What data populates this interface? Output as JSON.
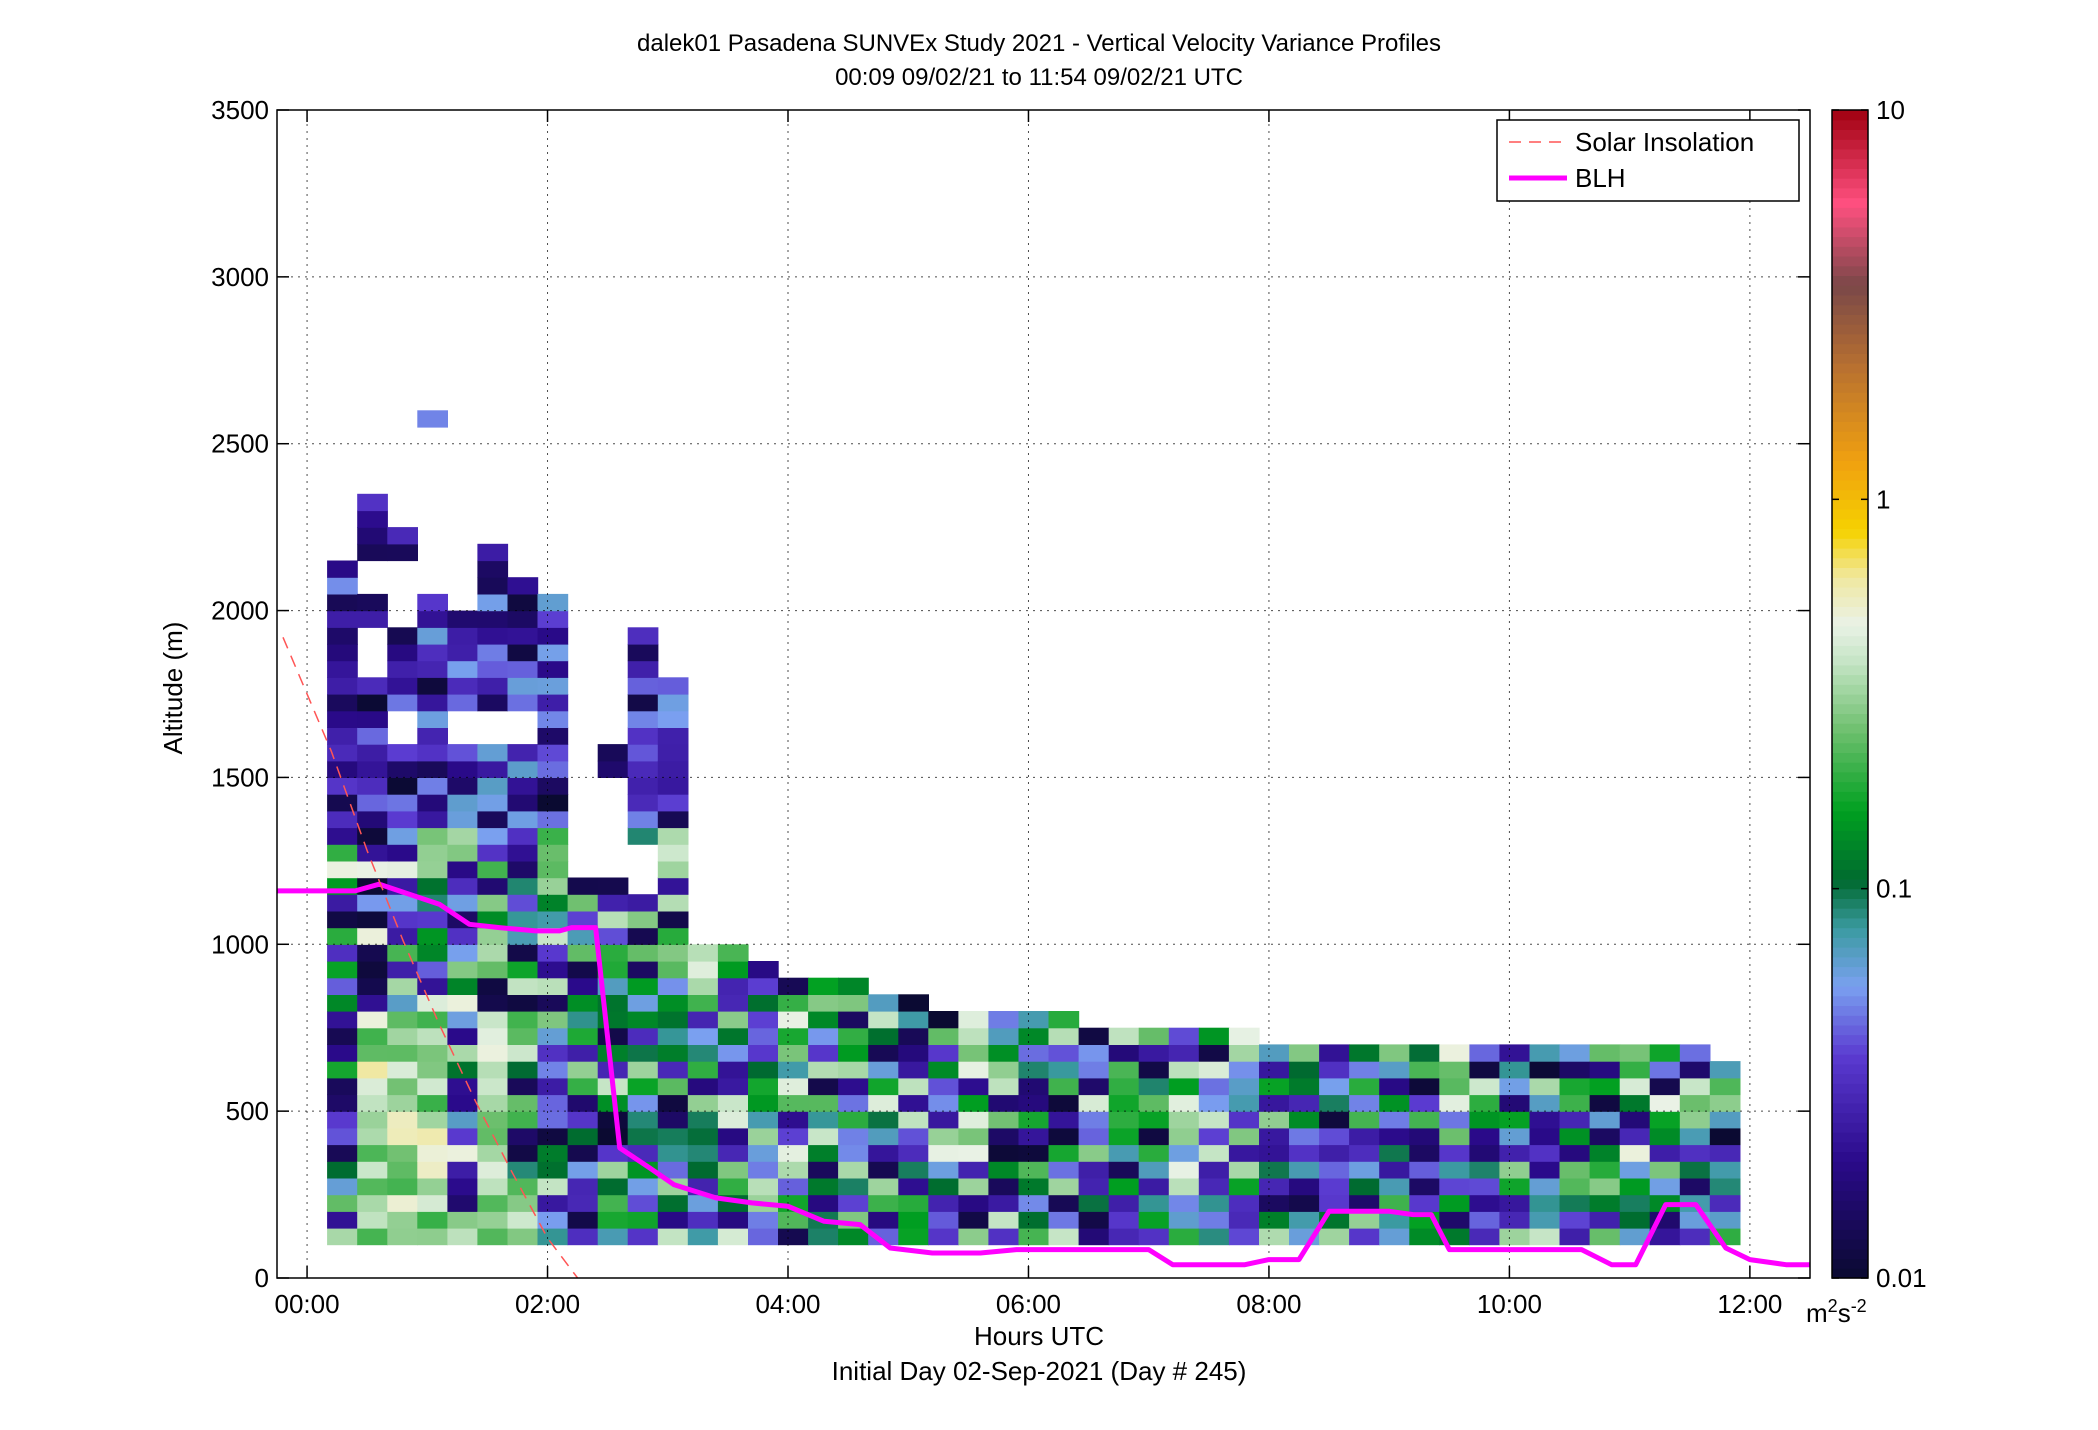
{
  "chart_data": {
    "type": "heatmap",
    "title": "dalek01 Pasadena SUNVEx Study 2021 - Vertical Velocity Variance Profiles",
    "subtitle": "00:09 09/02/21 to 11:54 09/02/21  UTC",
    "xlabel": "Hours UTC",
    "xlabel2": "Initial Day 02-Sep-2021 (Day # 245)",
    "ylabel": "Altitude (m)",
    "xlim": [
      -0.25,
      12.5
    ],
    "ylim": [
      0,
      3500
    ],
    "x_ticks": [
      0,
      2,
      4,
      6,
      8,
      10,
      12
    ],
    "x_tick_labels": [
      "00:00",
      "02:00",
      "04:00",
      "06:00",
      "08:00",
      "10:00",
      "12:00"
    ],
    "y_ticks": [
      0,
      500,
      1000,
      1500,
      2000,
      2500,
      3000,
      3500
    ],
    "y_tick_labels": [
      "0",
      "500",
      "1000",
      "1500",
      "2000",
      "2500",
      "3000",
      "3500"
    ],
    "grid": true,
    "colorbar": {
      "scale": "log",
      "range": [
        0.01,
        10
      ],
      "ticks": [
        0.01,
        0.1,
        1,
        10
      ],
      "tick_labels": [
        "0.01",
        "0.1",
        "1",
        "10"
      ],
      "unit_base": "m",
      "unit_sup1": "2",
      "unit_mid": "s",
      "unit_sup2": "-2",
      "colormap": [
        {
          "v": 0.0,
          "color": "#0a0a30"
        },
        {
          "v": 0.1,
          "color": "#2a0a8a"
        },
        {
          "v": 0.19,
          "color": "#5a3ad0"
        },
        {
          "v": 0.25,
          "color": "#7aa0f0"
        },
        {
          "v": 0.3,
          "color": "#3a9aa0"
        },
        {
          "v": 0.34,
          "color": "#006a30"
        },
        {
          "v": 0.4,
          "color": "#00a020"
        },
        {
          "v": 0.47,
          "color": "#70c070"
        },
        {
          "v": 0.53,
          "color": "#c8e6c8"
        },
        {
          "v": 0.56,
          "color": "#eaf2e6"
        },
        {
          "v": 0.6,
          "color": "#f0e8a0"
        },
        {
          "v": 0.64,
          "color": "#f5d200"
        },
        {
          "v": 0.7,
          "color": "#f0a010"
        },
        {
          "v": 0.78,
          "color": "#b87030"
        },
        {
          "v": 0.85,
          "color": "#7a4848"
        },
        {
          "v": 0.92,
          "color": "#ff5080"
        },
        {
          "v": 1.0,
          "color": "#a00010"
        }
      ]
    },
    "legend": {
      "placement": "top-right",
      "entries": [
        {
          "label": "Solar Insolation",
          "color": "#ff5555",
          "style": "dashed"
        },
        {
          "label": "BLH",
          "color": "#ff00ff",
          "style": "solid"
        }
      ]
    },
    "heatmap": {
      "x_start": 0.167,
      "dx": 0.25,
      "y_start": 100,
      "dy": 50,
      "ncols": 47,
      "top_altitudes": [
        2150,
        2350,
        2250,
        2600,
        2200,
        2200,
        2100,
        2050,
        1950,
        1950,
        1950,
        1800,
        1000,
        1000,
        950,
        900,
        900,
        900,
        850,
        850,
        800,
        800,
        800,
        800,
        800,
        750,
        750,
        750,
        750,
        750,
        750,
        700,
        700,
        700,
        700,
        700,
        700,
        700,
        700,
        700,
        700,
        700,
        700,
        700,
        700,
        700,
        650
      ],
      "gaps": [
        {
          "col": 1,
          "from": 1800,
          "to": 1950
        },
        {
          "col": 1,
          "from": 2050,
          "to": 2150
        },
        {
          "col": 2,
          "from": 1600,
          "to": 1700
        },
        {
          "col": 2,
          "from": 1950,
          "to": 2150
        },
        {
          "col": 3,
          "from": 2050,
          "to": 2550
        },
        {
          "col": 4,
          "from": 1600,
          "to": 1700
        },
        {
          "col": 4,
          "from": 2000,
          "to": 2200
        },
        {
          "col": 5,
          "from": 1600,
          "to": 1700
        },
        {
          "col": 6,
          "from": 1600,
          "to": 1700
        },
        {
          "col": 8,
          "from": 1200,
          "to": 1950
        },
        {
          "col": 9,
          "from": 1200,
          "to": 1500
        },
        {
          "col": 9,
          "from": 1600,
          "to": 1950
        },
        {
          "col": 10,
          "from": 1150,
          "to": 1300
        }
      ],
      "low_layer_warm_cols": [
        1,
        2,
        3,
        5
      ],
      "value_range_log10": [
        -2,
        -0.3
      ],
      "seed": 245
    },
    "series": [
      {
        "name": "BLH",
        "x": [
          -0.25,
          0.1,
          0.15,
          0.4,
          0.6,
          0.85,
          1.1,
          1.35,
          1.6,
          1.9,
          2.1,
          2.2,
          2.4,
          2.6,
          2.85,
          3.05,
          3.4,
          3.7,
          4.0,
          4.3,
          4.6,
          4.85,
          5.2,
          5.6,
          5.9,
          6.4,
          6.8,
          7.0,
          7.2,
          7.5,
          7.8,
          8.0,
          8.25,
          8.5,
          8.75,
          9.0,
          9.2,
          9.35,
          9.5,
          9.7,
          10.0,
          10.2,
          10.4,
          10.6,
          10.85,
          11.05,
          11.3,
          11.55,
          11.8,
          12.0,
          12.3,
          12.5
        ],
        "y": [
          1160,
          1160,
          1160,
          1160,
          1180,
          1150,
          1120,
          1060,
          1050,
          1040,
          1040,
          1050,
          1050,
          390,
          330,
          280,
          240,
          225,
          215,
          170,
          160,
          90,
          75,
          75,
          85,
          85,
          85,
          85,
          40,
          40,
          40,
          55,
          55,
          200,
          200,
          200,
          190,
          190,
          85,
          85,
          85,
          85,
          85,
          85,
          40,
          40,
          220,
          220,
          90,
          55,
          40,
          40
        ]
      },
      {
        "name": "Solar Insolation",
        "x": [
          -0.2,
          0.2,
          0.5,
          0.8,
          1.1,
          1.4,
          1.7,
          2.0,
          2.25
        ],
        "y": [
          1920,
          1580,
          1280,
          1010,
          760,
          530,
          320,
          120,
          0
        ]
      }
    ]
  }
}
